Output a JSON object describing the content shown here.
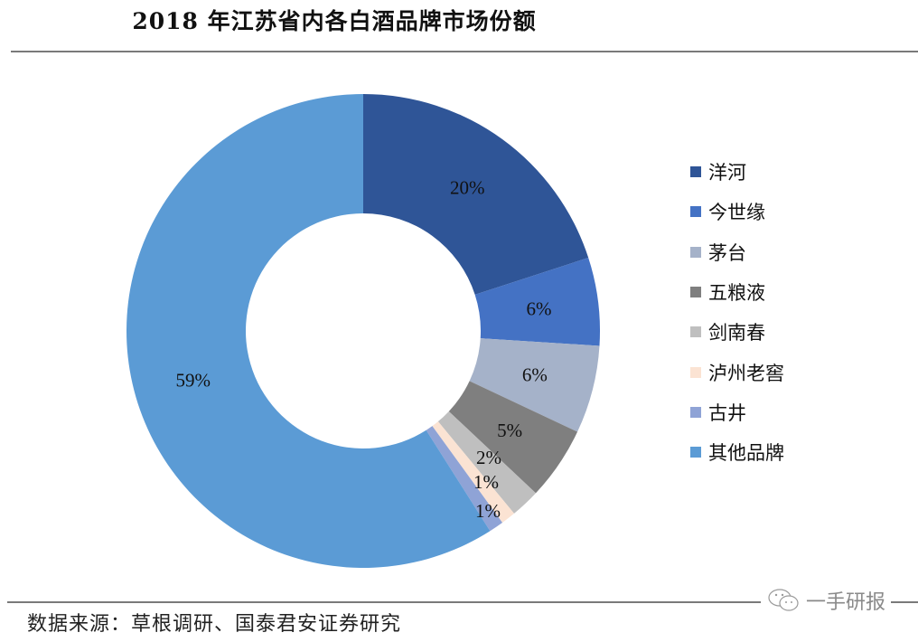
{
  "header": {
    "title": "2018 年江苏省内各白酒品牌市场份额"
  },
  "footer": {
    "source": "数据来源：草根调研、国泰君安证券研究",
    "watermark": "一手研报"
  },
  "chart_data": {
    "type": "pie",
    "variant": "donut",
    "title": "2018 年江苏省内各白酒品牌市场份额",
    "start_angle": "12 o'clock, clockwise",
    "legend_position": "right",
    "categories": [
      "洋河",
      "今世缘",
      "茅台",
      "五粮液",
      "剑南春",
      "泸州老窖",
      "古井",
      "其他品牌"
    ],
    "values": [
      20,
      6,
      6,
      5,
      2,
      1,
      1,
      59
    ],
    "labels": [
      "20%",
      "6%",
      "6%",
      "5%",
      "2%",
      "1%",
      "1%",
      "59%"
    ],
    "colors": [
      "#2F5597",
      "#4472C4",
      "#A5B2C9",
      "#7F7F7F",
      "#BFBFBF",
      "#FBE3D3",
      "#8FA3D6",
      "#5B9BD5"
    ],
    "units": "%"
  },
  "legend": {
    "items": [
      {
        "label": "洋河",
        "color": "#2F5597"
      },
      {
        "label": "今世缘",
        "color": "#4472C4"
      },
      {
        "label": "茅台",
        "color": "#A5B2C9"
      },
      {
        "label": "五粮液",
        "color": "#7F7F7F"
      },
      {
        "label": "剑南春",
        "color": "#BFBFBF"
      },
      {
        "label": "泸州老窖",
        "color": "#FBE3D3"
      },
      {
        "label": "古井",
        "color": "#8FA3D6"
      },
      {
        "label": "其他品牌",
        "color": "#5B9BD5"
      }
    ]
  }
}
